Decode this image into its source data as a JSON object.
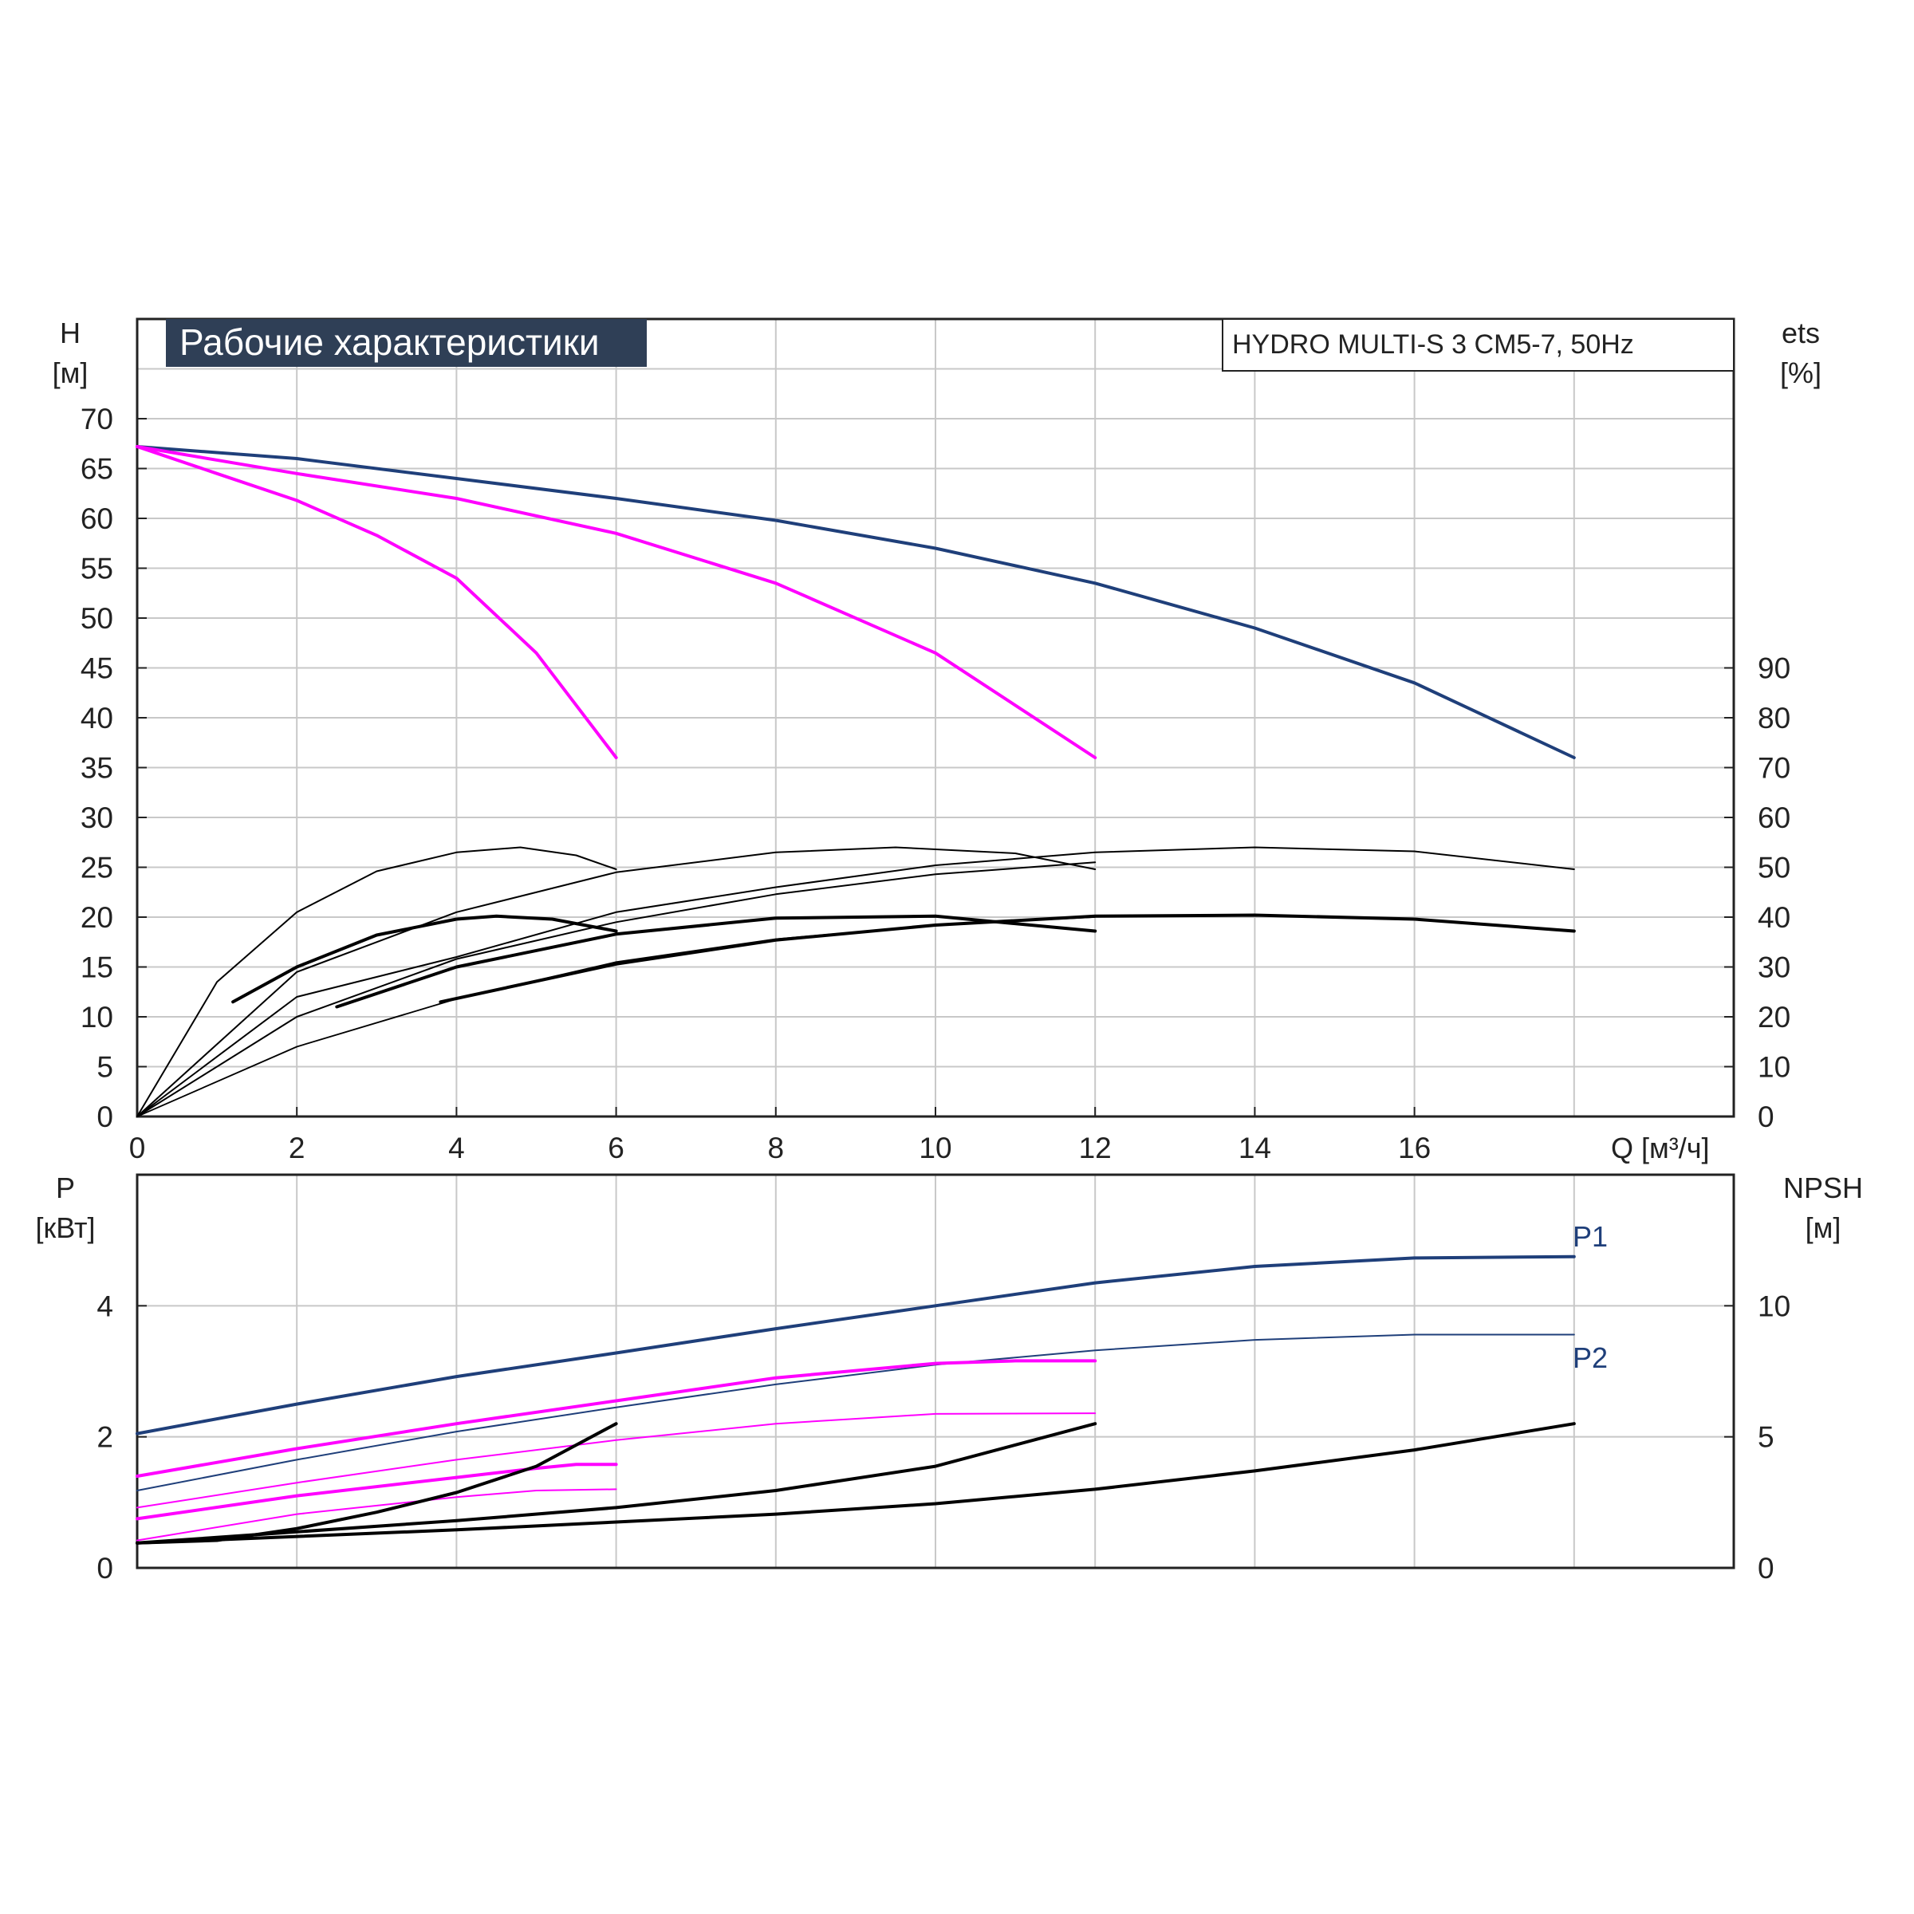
{
  "chart_data": [
    {
      "type": "line",
      "panel": "head-efficiency",
      "title": "Рабочие характеристики",
      "subtitle": "HYDRO MULTI-S 3 CM5-7, 50Hz",
      "y_label": "H",
      "y_unit": "[м]",
      "y2_label": "ets",
      "y2_unit": "[%]",
      "x_label": "Q [м³/ч]",
      "x_ticks": [
        "0",
        "2",
        "4",
        "6",
        "8",
        "10",
        "12",
        "14",
        "16"
      ],
      "y_ticks": [
        "0",
        "5",
        "10",
        "15",
        "20",
        "25",
        "30",
        "35",
        "40",
        "45",
        "50",
        "55",
        "60",
        "65",
        "70"
      ],
      "y2_ticks": [
        "0",
        "10",
        "20",
        "30",
        "40",
        "50",
        "60",
        "70",
        "80",
        "90"
      ],
      "xlim": [
        0,
        20
      ],
      "ylim": [
        0,
        80
      ],
      "y2lim": [
        0,
        160
      ],
      "grid": true,
      "series": [
        {
          "color": "#1f3f7a",
          "width": 4,
          "points": [
            [
              0,
              67.2
            ],
            [
              2,
              66
            ],
            [
              4,
              64
            ],
            [
              6,
              62
            ],
            [
              8,
              59.8
            ],
            [
              10,
              57
            ],
            [
              12,
              53.5
            ],
            [
              14,
              49
            ],
            [
              16,
              43.5
            ],
            [
              18,
              36
            ]
          ]
        },
        {
          "color": "#ff00ff",
          "width": 4,
          "points": [
            [
              0,
              67.2
            ],
            [
              2,
              64.5
            ],
            [
              4,
              62
            ],
            [
              6,
              58.5
            ],
            [
              8,
              53.5
            ],
            [
              10,
              46.5
            ],
            [
              12,
              36
            ]
          ]
        },
        {
          "color": "#ff00ff",
          "width": 4,
          "points": [
            [
              0,
              67.2
            ],
            [
              1,
              64.5
            ],
            [
              2,
              61.8
            ],
            [
              3,
              58.3
            ],
            [
              4,
              54
            ],
            [
              5,
              46.5
            ],
            [
              6,
              36
            ]
          ]
        },
        {
          "color": "#000000",
          "width": 2,
          "points": [
            [
              0,
              0
            ],
            [
              1,
              13.5
            ],
            [
              2,
              20.5
            ],
            [
              3,
              24.6
            ],
            [
              4,
              26.5
            ],
            [
              4.8,
              27
            ],
            [
              5.5,
              26.2
            ],
            [
              6,
              24.8
            ]
          ]
        },
        {
          "color": "#000000",
          "width": 2,
          "points": [
            [
              0,
              0
            ],
            [
              2,
              14.5
            ],
            [
              4,
              20.5
            ],
            [
              6,
              24.5
            ],
            [
              8,
              26.5
            ],
            [
              9.5,
              27
            ],
            [
              11,
              26.4
            ],
            [
              12,
              24.8
            ]
          ]
        },
        {
          "color": "#000000",
          "width": 2,
          "points": [
            [
              0,
              0
            ],
            [
              2,
              12
            ],
            [
              4,
              16
            ],
            [
              6,
              20.5
            ],
            [
              8,
              23
            ],
            [
              10,
              25.2
            ],
            [
              12,
              26.5
            ],
            [
              14,
              27
            ],
            [
              16,
              26.6
            ],
            [
              18,
              24.8
            ]
          ]
        },
        {
          "color": "#000000",
          "width": 2,
          "points": [
            [
              0,
              0
            ],
            [
              2,
              10
            ],
            [
              4,
              15.8
            ],
            [
              6,
              19.5
            ],
            [
              8,
              22.3
            ],
            [
              10,
              24.3
            ],
            [
              12,
              25.5
            ]
          ]
        },
        {
          "color": "#000000",
          "width": 1.8,
          "points": [
            [
              0,
              0
            ],
            [
              2,
              7
            ],
            [
              4,
              11.8
            ],
            [
              6,
              15.5
            ],
            [
              8,
              17.8
            ],
            [
              10,
              19.2
            ],
            [
              12,
              20
            ]
          ]
        },
        {
          "color": "#000000",
          "width": 4,
          "points": [
            [
              1.2,
              11.5
            ],
            [
              2,
              15
            ],
            [
              3,
              18.2
            ],
            [
              4,
              19.8
            ],
            [
              4.5,
              20.1
            ],
            [
              5.2,
              19.8
            ],
            [
              6,
              18.6
            ]
          ]
        },
        {
          "color": "#000000",
          "width": 4,
          "points": [
            [
              2.5,
              11
            ],
            [
              4,
              15
            ],
            [
              6,
              18.3
            ],
            [
              8,
              19.9
            ],
            [
              10,
              20.1
            ],
            [
              12,
              18.6
            ]
          ]
        },
        {
          "color": "#000000",
          "width": 4,
          "points": [
            [
              3.8,
              11.5
            ],
            [
              6,
              15.3
            ],
            [
              8,
              17.7
            ],
            [
              10,
              19.2
            ],
            [
              12,
              20.1
            ],
            [
              14,
              20.2
            ],
            [
              16,
              19.8
            ],
            [
              18,
              18.6
            ]
          ]
        }
      ]
    },
    {
      "type": "line",
      "panel": "power-npsh",
      "y_label": "P",
      "y_unit": "[кВт]",
      "y2_label": "NPSH",
      "y2_unit": "[м]",
      "y_ticks": [
        "0",
        "2",
        "4"
      ],
      "y2_ticks": [
        "0",
        "5",
        "10"
      ],
      "xlim": [
        0,
        20
      ],
      "ylim": [
        0,
        6
      ],
      "y2lim": [
        0,
        15
      ],
      "grid": true,
      "annotations": [
        "P1",
        "P2"
      ],
      "series": [
        {
          "name": "P1",
          "color": "#1f3f7a",
          "width": 4,
          "points": [
            [
              0,
              2.05
            ],
            [
              2,
              2.5
            ],
            [
              4,
              2.92
            ],
            [
              6,
              3.28
            ],
            [
              8,
              3.65
            ],
            [
              10,
              4.0
            ],
            [
              12,
              4.35
            ],
            [
              14,
              4.6
            ],
            [
              16,
              4.73
            ],
            [
              18,
              4.75
            ]
          ]
        },
        {
          "name": "P2",
          "color": "#1f3f7a",
          "width": 2,
          "points": [
            [
              0,
              1.18
            ],
            [
              2,
              1.65
            ],
            [
              4,
              2.08
            ],
            [
              6,
              2.45
            ],
            [
              8,
              2.8
            ],
            [
              10,
              3.1
            ],
            [
              12,
              3.32
            ],
            [
              14,
              3.48
            ],
            [
              16,
              3.56
            ],
            [
              18,
              3.56
            ]
          ]
        },
        {
          "color": "#ff00ff",
          "width": 4,
          "points": [
            [
              0,
              1.4
            ],
            [
              2,
              1.82
            ],
            [
              4,
              2.2
            ],
            [
              6,
              2.55
            ],
            [
              8,
              2.9
            ],
            [
              10,
              3.12
            ],
            [
              11,
              3.16
            ],
            [
              12,
              3.16
            ]
          ]
        },
        {
          "color": "#ff00ff",
          "width": 2,
          "points": [
            [
              0,
              0.92
            ],
            [
              2,
              1.3
            ],
            [
              4,
              1.65
            ],
            [
              6,
              1.95
            ],
            [
              8,
              2.2
            ],
            [
              10,
              2.35
            ],
            [
              12,
              2.36
            ]
          ]
        },
        {
          "color": "#ff00ff",
          "width": 4,
          "points": [
            [
              0,
              0.75
            ],
            [
              2,
              1.1
            ],
            [
              4,
              1.38
            ],
            [
              5,
              1.52
            ],
            [
              5.5,
              1.58
            ],
            [
              6,
              1.58
            ]
          ]
        },
        {
          "color": "#ff00ff",
          "width": 2,
          "points": [
            [
              0,
              0.42
            ],
            [
              2,
              0.82
            ],
            [
              4,
              1.08
            ],
            [
              5,
              1.18
            ],
            [
              6,
              1.2
            ]
          ]
        },
        {
          "color": "#000000",
          "width": 4,
          "points": [
            [
              0,
              0.38
            ],
            [
              1,
              0.42
            ],
            [
              2,
              0.6
            ],
            [
              3,
              0.85
            ],
            [
              4,
              1.15
            ],
            [
              5,
              1.55
            ],
            [
              6,
              2.2
            ]
          ]
        },
        {
          "color": "#000000",
          "width": 4,
          "points": [
            [
              0,
              0.38
            ],
            [
              2,
              0.55
            ],
            [
              4,
              0.72
            ],
            [
              6,
              0.92
            ],
            [
              8,
              1.18
            ],
            [
              10,
              1.55
            ],
            [
              12,
              2.2
            ]
          ]
        },
        {
          "color": "#000000",
          "width": 4,
          "points": [
            [
              0,
              0.38
            ],
            [
              2,
              0.48
            ],
            [
              4,
              0.58
            ],
            [
              6,
              0.7
            ],
            [
              8,
              0.82
            ],
            [
              10,
              0.98
            ],
            [
              12,
              1.2
            ],
            [
              14,
              1.48
            ],
            [
              16,
              1.8
            ],
            [
              18,
              2.2
            ]
          ]
        }
      ]
    }
  ]
}
